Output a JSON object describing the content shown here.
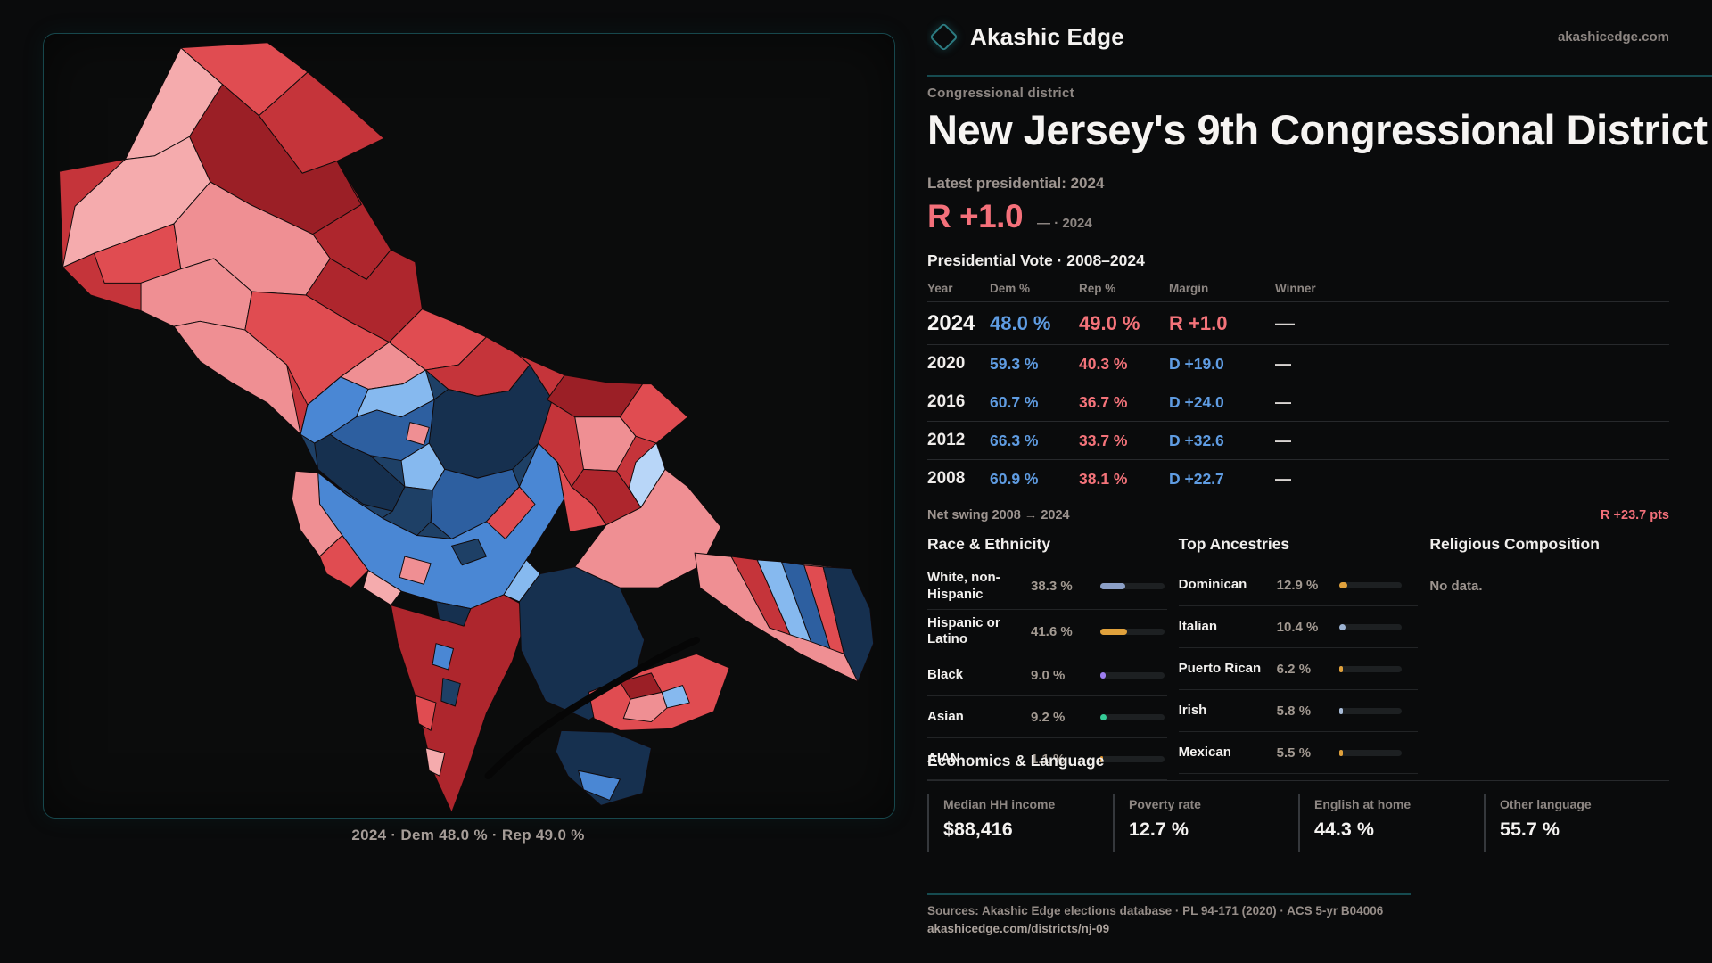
{
  "brand": {
    "name": "Akashic Edge",
    "domain": "akashicedge.com",
    "logo_icon": "diamond-icon"
  },
  "eyebrow": "Congressional district",
  "title": "New Jersey's 9th Congressional District",
  "latest_label": "Latest presidential: 2024",
  "headline_margin": {
    "value": "R +1.0",
    "suffix": "— · 2024"
  },
  "vote_table": {
    "heading": "Presidential Vote · 2008–2024",
    "columns": [
      "Year",
      "Dem %",
      "Rep %",
      "Margin",
      "Winner"
    ],
    "rows": [
      {
        "year": "2024",
        "dem": "48.0 %",
        "rep": "49.0 %",
        "margin": "R +1.0",
        "winner": "—",
        "emphasis": true
      },
      {
        "year": "2020",
        "dem": "59.3 %",
        "rep": "40.3 %",
        "margin": "D +19.0",
        "winner": "—",
        "emphasis": false
      },
      {
        "year": "2016",
        "dem": "60.7 %",
        "rep": "36.7 %",
        "margin": "D +24.0",
        "winner": "—",
        "emphasis": false
      },
      {
        "year": "2012",
        "dem": "66.3 %",
        "rep": "33.7 %",
        "margin": "D +32.6",
        "winner": "—",
        "emphasis": false
      },
      {
        "year": "2008",
        "dem": "60.9 %",
        "rep": "38.1 %",
        "margin": "D +22.7",
        "winner": "—",
        "emphasis": false
      }
    ]
  },
  "net_swing": {
    "label": "Net swing 2008 → 2024",
    "value": "R +23.7 pts"
  },
  "race": {
    "heading": "Race & Ethnicity",
    "items": [
      {
        "label": "White, non-Hispanic",
        "value": "38.3 %",
        "pct": 38.3,
        "color": "#8b9fc6"
      },
      {
        "label": "Hispanic or Latino",
        "value": "41.6 %",
        "pct": 41.6,
        "color": "#e0a13c"
      },
      {
        "label": "Black",
        "value": "9.0 %",
        "pct": 9.0,
        "color": "#9d7ef0"
      },
      {
        "label": "Asian",
        "value": "9.2 %",
        "pct": 9.2,
        "color": "#35cb96"
      },
      {
        "label": "AIAN",
        "value": "1.1 %",
        "pct": 1.1,
        "color": "#d98f2b"
      }
    ]
  },
  "ancestries": {
    "heading": "Top Ancestries",
    "items": [
      {
        "label": "Dominican",
        "value": "12.9 %",
        "pct": 12.9,
        "color": "#e0a13c"
      },
      {
        "label": "Italian",
        "value": "10.4 %",
        "pct": 10.4,
        "color": "#9cb3d3"
      },
      {
        "label": "Puerto Rican",
        "value": "6.2 %",
        "pct": 6.2,
        "color": "#e0a13c"
      },
      {
        "label": "Irish",
        "value": "5.8 %",
        "pct": 5.8,
        "color": "#a8bcd8"
      },
      {
        "label": "Mexican",
        "value": "5.5 %",
        "pct": 5.5,
        "color": "#e0a13c"
      }
    ]
  },
  "religion": {
    "heading": "Religious Composition",
    "empty": "No data."
  },
  "economics": {
    "heading": "Economics & Language",
    "stats": [
      {
        "label": "Median HH income",
        "value": "$88,416"
      },
      {
        "label": "Poverty rate",
        "value": "12.7 %"
      },
      {
        "label": "English at home",
        "value": "44.3 %"
      },
      {
        "label": "Other language",
        "value": "55.7 %"
      }
    ]
  },
  "footer": {
    "sources": "Sources: Akashic Edge elections database · PL 94-171 (2020) · ACS 5-yr B04006",
    "permalink": "akashicedge.com/districts/nj-09"
  },
  "map": {
    "caption": "2024 · Dem 48.0 % · Rep 49.0 %",
    "palette": {
      "r0": "#9b1f26",
      "r1": "#ae262d",
      "r2": "#c5343a",
      "r3": "#e04c51",
      "r4": "#ef8f93",
      "r5": "#f5abad",
      "b0": "#16304f",
      "b1": "#1e4066",
      "b2": "#2d5fa0",
      "b3": "#4a87d4",
      "b4": "#86b9ef",
      "b5": "#b8d6f8",
      "stroke": "#100a0b",
      "water": "#060606"
    }
  },
  "colors": {
    "dem_blue": "#5f9ce2",
    "rep_red": "#f4737a",
    "accent_teal": "#164b50"
  }
}
